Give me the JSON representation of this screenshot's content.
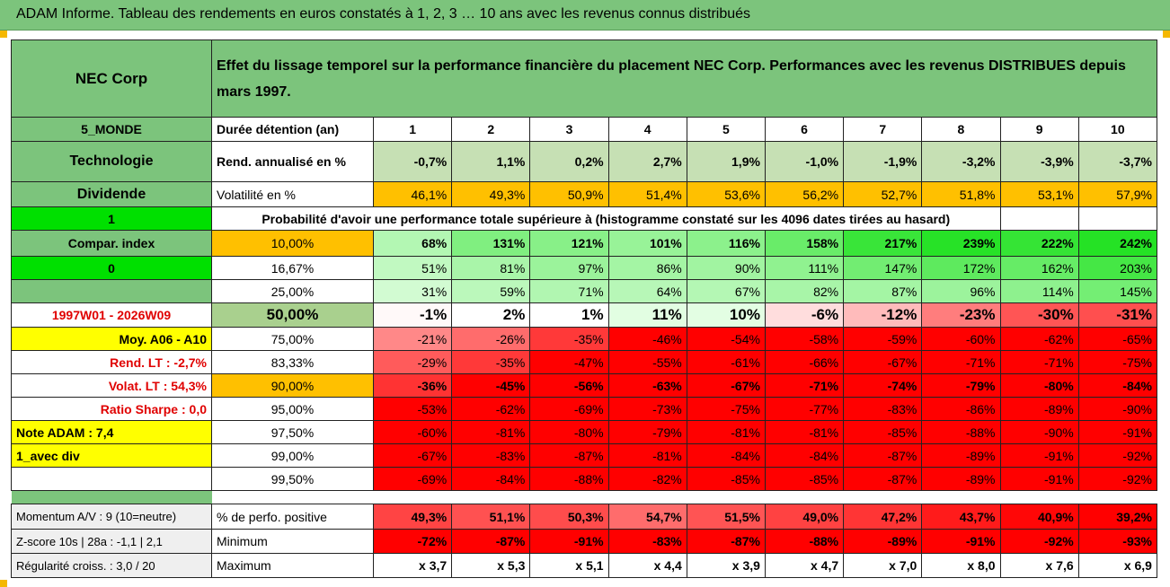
{
  "title": "ADAM Informe. Tableau des rendements en euros constatés à 1, 2, 3 … 10 ans avec les revenus connus distribués",
  "header": {
    "name": "NEC Corp",
    "description": "Effet du lissage temporel sur la performance financière du placement NEC Corp. Performances avec les revenus DISTRIBUES depuis mars 1997."
  },
  "left": {
    "zone": "5_MONDE",
    "sector": "Technologie",
    "dividend": "Dividende",
    "flag1": "1",
    "compar": "Compar. index",
    "flag0": "0",
    "period": "1997W01 - 2026W09",
    "moy": "Moy. A06 - A10",
    "rend_lt": "Rend. LT :   -2,7%",
    "volat_lt": "Volat. LT :   54,3%",
    "sharpe": "Ratio Sharpe :    0,0",
    "note": "Note ADAM : 7,4",
    "div": "1_avec div",
    "momentum": "Momentum A/V : 9 (10=neutre)",
    "zscore": "Z-score 10s | 28a : -1,1 | 2,1",
    "regularite": "Régularité croiss. : 3,0 / 20"
  },
  "labels": {
    "duree": "Durée détention (an)",
    "rend": "Rend. annualisé en %",
    "vol": "Volatilité en %",
    "proba": "Probabilité d'avoir une performance totale supérieure à (histogramme constaté sur les 4096 dates tirées au hasard)",
    "positive": "% de perfo. positive",
    "minimum": "Minimum",
    "maximum": "Maximum"
  },
  "years": [
    "1",
    "2",
    "3",
    "4",
    "5",
    "6",
    "7",
    "8",
    "9",
    "10"
  ],
  "rend": [
    "-0,7%",
    "1,1%",
    "0,2%",
    "2,7%",
    "1,9%",
    "-1,0%",
    "-1,9%",
    "-3,2%",
    "-3,9%",
    "-3,7%"
  ],
  "vol": [
    "46,1%",
    "49,3%",
    "50,9%",
    "51,4%",
    "53,6%",
    "56,2%",
    "52,7%",
    "51,8%",
    "53,1%",
    "57,9%"
  ],
  "quantiles": [
    {
      "q": "10,00%",
      "v": [
        68,
        131,
        121,
        101,
        116,
        158,
        217,
        239,
        222,
        242
      ]
    },
    {
      "q": "16,67%",
      "v": [
        51,
        81,
        97,
        86,
        90,
        111,
        147,
        172,
        162,
        203
      ]
    },
    {
      "q": "25,00%",
      "v": [
        31,
        59,
        71,
        64,
        67,
        82,
        87,
        96,
        114,
        145
      ]
    },
    {
      "q": "50,00%",
      "v": [
        -1,
        2,
        1,
        11,
        10,
        -6,
        -12,
        -23,
        -30,
        -31
      ]
    },
    {
      "q": "75,00%",
      "v": [
        -21,
        -26,
        -35,
        -46,
        -54,
        -58,
        -59,
        -60,
        -62,
        -65
      ]
    },
    {
      "q": "83,33%",
      "v": [
        -29,
        -35,
        -47,
        -55,
        -61,
        -66,
        -67,
        -71,
        -71,
        -75
      ]
    },
    {
      "q": "90,00%",
      "v": [
        -36,
        -45,
        -56,
        -63,
        -67,
        -71,
        -74,
        -79,
        -80,
        -84
      ]
    },
    {
      "q": "95,00%",
      "v": [
        -53,
        -62,
        -69,
        -73,
        -75,
        -77,
        -83,
        -86,
        -89,
        -90
      ]
    },
    {
      "q": "97,50%",
      "v": [
        -60,
        -81,
        -80,
        -79,
        -81,
        -81,
        -85,
        -88,
        -90,
        -91
      ]
    },
    {
      "q": "99,00%",
      "v": [
        -67,
        -83,
        -87,
        -81,
        -84,
        -84,
        -87,
        -89,
        -91,
        -92
      ]
    },
    {
      "q": "99,50%",
      "v": [
        -69,
        -84,
        -88,
        -82,
        -85,
        -85,
        -87,
        -89,
        -91,
        -92
      ]
    }
  ],
  "positive": [
    "49,3%",
    "51,1%",
    "50,3%",
    "54,7%",
    "51,5%",
    "49,0%",
    "47,2%",
    "43,7%",
    "40,9%",
    "39,2%"
  ],
  "minimum": [
    "-72%",
    "-87%",
    "-91%",
    "-83%",
    "-87%",
    "-88%",
    "-89%",
    "-91%",
    "-92%",
    "-93%"
  ],
  "maximum": [
    "x 3,7",
    "x 5,3",
    "x 5,1",
    "x 4,4",
    "x 3,9",
    "x 4,7",
    "x 7,0",
    "x 8,0",
    "x 7,6",
    "x 6,9"
  ],
  "colors": {
    "green": "#7cc47c",
    "rend_bg": "#c6e0b4",
    "vol_bg": "#ffc000",
    "red": "#ff0000"
  }
}
